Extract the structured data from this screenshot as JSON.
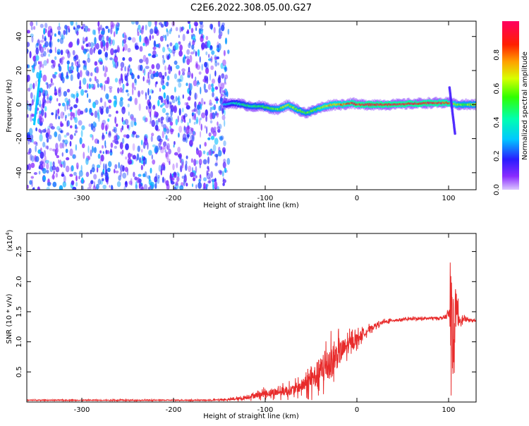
{
  "title": "C2E6.2022.308.05.00.G27",
  "chart_data": [
    {
      "type": "heatmap",
      "xlabel": "Height of straight line (km)",
      "ylabel": "Frequency (Hz)",
      "xlim": [
        -360,
        130
      ],
      "ylim": [
        -50,
        49
      ],
      "xticks": [
        -300,
        -200,
        -100,
        0,
        100
      ],
      "yticks": [
        -40,
        -20,
        0,
        20,
        40
      ],
      "grid": false,
      "colorbar": {
        "label": "Normalized spectral amplitude",
        "range": [
          0,
          1
        ],
        "ticks": [
          0.0,
          0.2,
          0.4,
          0.6,
          0.8
        ],
        "colormap": "rainbow"
      },
      "noise_region": {
        "x_range": [
          -360,
          -140
        ],
        "y_range": [
          -50,
          49
        ],
        "amplitude_range": [
          0.05,
          0.3
        ]
      },
      "ridge": {
        "description": "Doppler frequency track vs height",
        "x": [
          -145,
          -135,
          -125,
          -115,
          -105,
          -95,
          -85,
          -75,
          -65,
          -55,
          -45,
          -35,
          -25,
          -15,
          -5,
          0,
          20,
          40,
          60,
          80,
          100,
          110,
          130
        ],
        "y": [
          0,
          1,
          0,
          -1,
          -1,
          -2,
          -3,
          0,
          -3,
          -5,
          -3,
          -1,
          0,
          0,
          1,
          0,
          0,
          0,
          0.5,
          1,
          1,
          0,
          0
        ],
        "amplitude": [
          0.3,
          0.4,
          0.45,
          0.5,
          0.5,
          0.55,
          0.6,
          0.65,
          0.6,
          0.55,
          0.6,
          0.7,
          0.75,
          0.8,
          0.9,
          0.95,
          0.95,
          0.95,
          0.95,
          0.95,
          0.9,
          0.6,
          0.6
        ]
      },
      "feature_left_streak": {
        "x": [
          -352,
          -345
        ],
        "y": [
          -12,
          20
        ]
      },
      "feature_right_spike": {
        "x": [
          101,
          107
        ],
        "y": [
          -17,
          10
        ]
      }
    },
    {
      "type": "line",
      "xlabel": "Height of straight line (km)",
      "ylabel": "SNR (10 * v/v)",
      "y_multiplier": "(x10",
      "y_multiplier_exp": "4",
      "xlim": [
        -360,
        130
      ],
      "ylim": [
        0,
        2.8
      ],
      "xticks": [
        -300,
        -200,
        -100,
        0,
        100
      ],
      "yticks": [
        0.5,
        1.0,
        1.5,
        2.0,
        2.5
      ],
      "grid": false,
      "color": "#e82b2b",
      "series": [
        {
          "x": [
            -360,
            -300,
            -250,
            -200,
            -160,
            -140,
            -125,
            -115,
            -100,
            -85,
            -70,
            -60,
            -50,
            -40,
            -30,
            -20,
            -10,
            0,
            10,
            20,
            30,
            40,
            60,
            80,
            95,
            100,
            103,
            105,
            108,
            112,
            120,
            130
          ],
          "y": [
            0.03,
            0.03,
            0.03,
            0.03,
            0.03,
            0.04,
            0.06,
            0.1,
            0.14,
            0.17,
            0.2,
            0.27,
            0.36,
            0.5,
            0.64,
            0.8,
            0.94,
            1.05,
            1.17,
            1.27,
            1.33,
            1.36,
            1.38,
            1.39,
            1.4,
            1.45,
            1.5,
            1.2,
            1.55,
            1.37,
            1.37,
            1.35
          ],
          "noise": [
            0.01,
            0.01,
            0.01,
            0.01,
            0.01,
            0.02,
            0.04,
            0.06,
            0.08,
            0.1,
            0.12,
            0.15,
            0.25,
            0.35,
            0.4,
            0.3,
            0.2,
            0.14,
            0.08,
            0.05,
            0.04,
            0.03,
            0.03,
            0.03,
            0.03,
            0.1,
            1.1,
            1.1,
            0.45,
            0.1,
            0.03,
            0.03
          ]
        }
      ]
    }
  ]
}
